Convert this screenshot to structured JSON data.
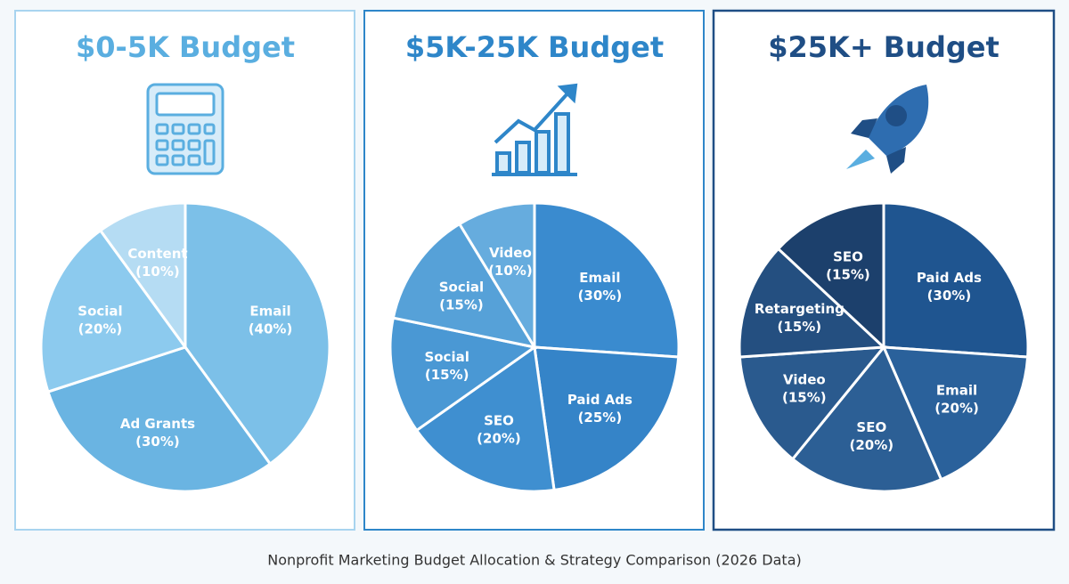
{
  "chart_data": [
    {
      "type": "pie",
      "title": "$0-5K Budget",
      "title_color": "#5aaee0",
      "categories": [
        "Email",
        "Ad Grants",
        "Social",
        "Content"
      ],
      "values": [
        40,
        30,
        20,
        10
      ],
      "value_labels": [
        "(40%)",
        "(30%)",
        "(20%)",
        "(10%)"
      ],
      "colors": [
        "#7cc0e8",
        "#6ab4e2",
        "#8ccaee",
        "#b5dcf3"
      ]
    },
    {
      "type": "pie",
      "title": "$5K-25K Budget",
      "title_color": "#2e86c9",
      "categories": [
        "Email",
        "Paid Ads",
        "SEO",
        "Social",
        "Social",
        "Video"
      ],
      "values": [
        30,
        25,
        20,
        15,
        15,
        10
      ],
      "value_labels": [
        "(30%)",
        "(25%)",
        "(20%)",
        "(15%)",
        "(15%)",
        "(10%)"
      ],
      "colors": [
        "#3a8bcf",
        "#3584c8",
        "#3f8fd0",
        "#4a98d4",
        "#56a1d8",
        "#66acde"
      ]
    },
    {
      "type": "pie",
      "title": "$25K+ Budget",
      "title_color": "#1f4e85",
      "categories": [
        "Paid Ads",
        "Email",
        "SEO",
        "Video",
        "Retargeting",
        "SEO"
      ],
      "values": [
        30,
        20,
        20,
        15,
        15,
        15
      ],
      "value_labels": [
        "(30%)",
        "(20%)",
        "(20%)",
        "(15%)",
        "(15%)",
        "(15%)"
      ],
      "colors": [
        "#1f5590",
        "#2a619b",
        "#2c5f95",
        "#2a5a8e",
        "#244f80",
        "#1c406c"
      ]
    }
  ],
  "caption": "Nonprofit Marketing Budget Allocation & Strategy Comparison (2026 Data)"
}
